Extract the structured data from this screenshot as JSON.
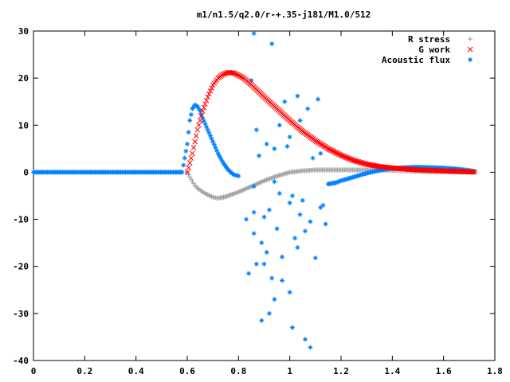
{
  "chart_data": {
    "type": "scatter",
    "title": "m1/n1.5/q2.0/r-+.35-j181/M1.0/512",
    "xlabel": "",
    "ylabel": "",
    "xlim": [
      0,
      1.8
    ],
    "ylim": [
      -40,
      30
    ],
    "x_ticks": [
      "0",
      "0.2",
      "0.4",
      "0.6",
      "0.8",
      "1",
      "1.2",
      "1.4",
      "1.6",
      "1.8"
    ],
    "y_ticks": [
      "-40",
      "-30",
      "-20",
      "-10",
      "0",
      "10",
      "20",
      "30"
    ],
    "grid": false,
    "legend_position": "top-right",
    "series": [
      {
        "name": "R stress",
        "marker": "plus",
        "color": "#a0a0a0",
        "x": [
          0.6,
          0.61,
          0.62,
          0.63,
          0.64,
          0.66,
          0.68,
          0.7,
          0.72,
          0.75,
          0.78,
          0.8,
          0.85,
          0.9,
          0.95,
          1.0,
          1.05,
          1.1,
          1.15,
          1.2,
          1.25,
          1.3,
          1.35,
          1.4,
          1.45,
          1.5,
          1.55,
          1.6,
          1.65,
          1.7,
          1.72
        ],
        "y": [
          0,
          -1.0,
          -2.0,
          -2.8,
          -3.4,
          -4.2,
          -4.8,
          -5.3,
          -5.5,
          -5.2,
          -4.6,
          -4.2,
          -3.0,
          -1.8,
          -0.8,
          0,
          0.3,
          0.5,
          0.5,
          0.5,
          0.5,
          0.5,
          0.5,
          0.4,
          0.3,
          0.2,
          0.1,
          0.05,
          0.02,
          0.01,
          0
        ]
      },
      {
        "name": "G work",
        "marker": "cross",
        "color": "#ff0000",
        "x": [
          0.6,
          0.61,
          0.62,
          0.63,
          0.64,
          0.65,
          0.66,
          0.68,
          0.7,
          0.72,
          0.74,
          0.76,
          0.78,
          0.8,
          0.82,
          0.85,
          0.9,
          0.95,
          1.0,
          1.05,
          1.1,
          1.15,
          1.2,
          1.25,
          1.3,
          1.35,
          1.4,
          1.45,
          1.5,
          1.55,
          1.6,
          1.65,
          1.7,
          1.72
        ],
        "y": [
          0,
          2.0,
          4.0,
          6.5,
          9.0,
          11.0,
          13.0,
          16.0,
          18.5,
          20.0,
          20.8,
          21.2,
          21.1,
          20.6,
          20.0,
          18.6,
          16.0,
          13.5,
          11.0,
          8.7,
          6.7,
          5.0,
          3.6,
          2.5,
          1.7,
          1.2,
          0.9,
          0.7,
          0.5,
          0.4,
          0.3,
          0.2,
          0.1,
          0.05
        ]
      },
      {
        "name": "Acoustic flux",
        "marker": "asterisk",
        "color": "#0080ff",
        "line_x": [
          0.0,
          0.05,
          0.1,
          0.15,
          0.2,
          0.25,
          0.3,
          0.35,
          0.4,
          0.45,
          0.5,
          0.55,
          0.58,
          0.6,
          0.61,
          0.62,
          0.63,
          0.64,
          0.65,
          0.66,
          0.68,
          0.7,
          0.72,
          0.74,
          0.76,
          0.78,
          0.8
        ],
        "line_y": [
          0,
          0,
          0,
          0,
          0,
          0,
          0,
          0,
          0,
          0,
          0,
          0,
          0,
          6.0,
          11.0,
          13.5,
          14.3,
          14.0,
          13.0,
          11.5,
          9.0,
          6.5,
          4.0,
          2.0,
          0.5,
          -0.5,
          -0.8
        ],
        "tail_x": [
          1.15,
          1.18,
          1.2,
          1.25,
          1.3,
          1.35,
          1.4,
          1.45,
          1.5,
          1.55,
          1.6,
          1.65,
          1.7,
          1.72
        ],
        "tail_y": [
          -2.5,
          -2.2,
          -1.8,
          -1.0,
          -0.2,
          0.4,
          0.8,
          1.0,
          1.1,
          1.0,
          0.9,
          0.7,
          0.4,
          0.2
        ],
        "scatter_x": [
          0.86,
          0.93,
          0.85,
          0.87,
          0.98,
          1.03,
          1.07,
          1.11,
          1.04,
          0.96,
          1.0,
          0.91,
          0.94,
          0.99,
          1.12,
          1.09,
          0.88,
          0.86,
          0.92,
          0.9,
          1.01,
          1.05,
          1.13,
          0.83,
          0.86,
          0.89,
          0.95,
          1.02,
          1.06,
          1.08,
          1.14,
          0.91,
          0.97,
          1.03,
          0.9,
          0.87,
          0.93,
          1.1,
          0.84,
          0.97,
          1.0,
          0.94,
          0.92,
          0.89,
          1.01,
          1.06,
          1.08,
          1.12,
          0.96,
          0.86,
          0.94,
          1.0,
          1.04
        ],
        "scatter_y": [
          29.5,
          27.3,
          19.5,
          9.0,
          15.0,
          16.2,
          13.5,
          15.5,
          11.0,
          10.0,
          7.5,
          6.0,
          5.0,
          5.5,
          4.0,
          3.0,
          3.5,
          -8.5,
          -8.0,
          -9.5,
          -5.0,
          -6.0,
          -7.0,
          -10.0,
          -13.0,
          -15.0,
          -12.0,
          -14.0,
          -12.5,
          -10.5,
          -11.0,
          -17.0,
          -18.0,
          -16.0,
          -19.5,
          -19.5,
          -22.5,
          -18.2,
          -21.5,
          -23.0,
          -25.5,
          -27.0,
          -30.0,
          -31.5,
          -33.0,
          -35.5,
          -37.2,
          -7.5,
          -4.5,
          -3.0,
          -2.0,
          -6.5,
          -9.0
        ]
      }
    ]
  }
}
